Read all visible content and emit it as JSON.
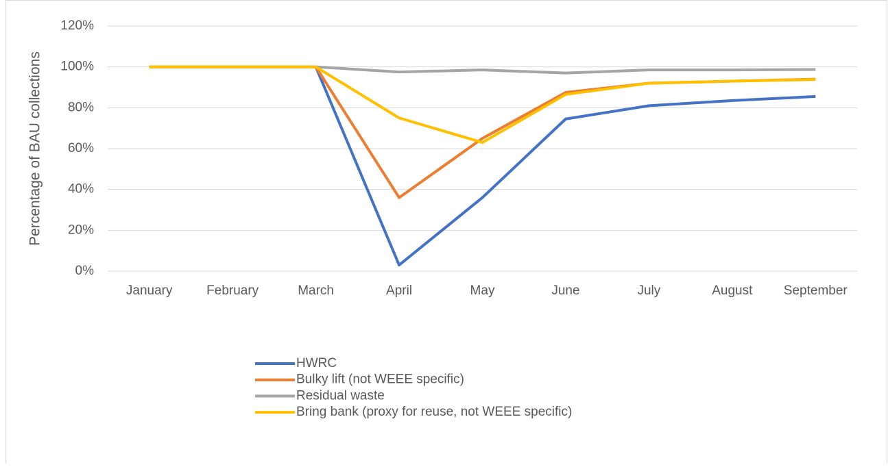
{
  "chart_data": {
    "type": "line",
    "y_axis_label": "Percentage of BAU collections",
    "categories": [
      "January",
      "February",
      "March",
      "April",
      "May",
      "June",
      "July",
      "August",
      "September"
    ],
    "series": [
      {
        "name": "HWRC",
        "color": "#4472c4",
        "values": [
          100,
          100,
          100,
          3,
          36,
          74.5,
          81,
          83.5,
          85.5
        ]
      },
      {
        "name": "Bulky lift (not WEEE specific)",
        "color": "#ed7d31",
        "values": [
          100,
          100,
          100,
          36,
          65,
          87.5,
          92,
          93,
          94
        ]
      },
      {
        "name": "Residual waste",
        "color": "#a5a5a5",
        "values": [
          100,
          100,
          100,
          97.5,
          98.5,
          97,
          98.5,
          98.5,
          98.7
        ]
      },
      {
        "name": "Bring bank (proxy for reuse, not WEEE specific)",
        "color": "#ffc000",
        "values": [
          100,
          100,
          100,
          75,
          63,
          86.5,
          92,
          93,
          93.8
        ]
      }
    ],
    "ylim": [
      0,
      120
    ],
    "yticks": [
      {
        "value": 0,
        "label": "0%"
      },
      {
        "value": 20,
        "label": "20%"
      },
      {
        "value": 40,
        "label": "40%"
      },
      {
        "value": 60,
        "label": "60%"
      },
      {
        "value": 80,
        "label": "80%"
      },
      {
        "value": 100,
        "label": "100%"
      },
      {
        "value": 120,
        "label": "120%"
      }
    ],
    "grid": true,
    "legend": "bottom"
  }
}
